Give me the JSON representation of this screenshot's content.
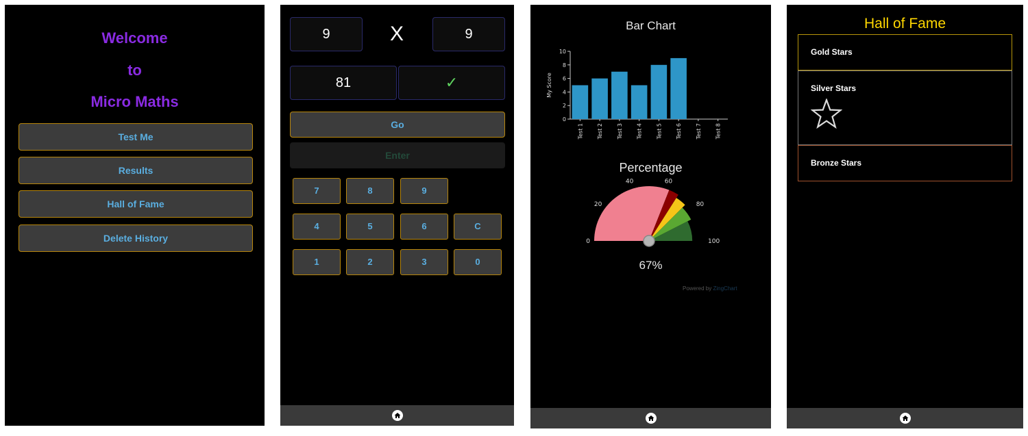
{
  "welcome": {
    "lines": [
      "Welcome",
      "to",
      "Micro Maths"
    ],
    "menu": [
      "Test Me",
      "Results",
      "Hall of Fame",
      "Delete History"
    ]
  },
  "quiz": {
    "left_operand": "9",
    "operator": "X",
    "right_operand": "9",
    "answer": "81",
    "check_mark": "✓",
    "go_label": "Go",
    "enter_label": "Enter",
    "keys": [
      "7",
      "8",
      "9",
      "4",
      "5",
      "6",
      "C",
      "1",
      "2",
      "3",
      "0"
    ]
  },
  "results": {
    "bar_title": "Bar Chart",
    "gauge_title": "Percentage",
    "gauge_value_text": "67%",
    "powered_prefix": "Powered by",
    "powered_brand": "ZingChart",
    "colors": {
      "bar": "#2e96c8",
      "gauge_pink": "#f08090",
      "gauge_red": "#8b0000",
      "gauge_yellow": "#f5c518",
      "gauge_green": "#5aa832",
      "gauge_dark_green": "#2f6b2f"
    }
  },
  "chart_data": [
    {
      "type": "bar",
      "categories": [
        "Test 1",
        "Test 2",
        "Test 3",
        "Test 4",
        "Test 5",
        "Test 6",
        "Test 7",
        "Test 8"
      ],
      "values": [
        5,
        6,
        7,
        5,
        8,
        9,
        null,
        null
      ],
      "title": "Bar Chart",
      "ylabel": "My Score",
      "ylim": [
        0,
        10
      ],
      "yticks": [
        0,
        2,
        4,
        6,
        8,
        10
      ]
    },
    {
      "type": "gauge",
      "title": "Percentage",
      "value": 67,
      "range": [
        0,
        100
      ],
      "ticks": [
        0,
        20,
        40,
        60,
        80,
        100
      ],
      "value_label": "67%"
    }
  ],
  "hall_of_fame": {
    "title": "Hall of Fame",
    "items": [
      "Gold Stars",
      "Silver Stars",
      "Bronze Stars"
    ],
    "colors": {
      "gold": "#b8960b",
      "silver": "#888888",
      "bronze": "#a0522d"
    }
  }
}
